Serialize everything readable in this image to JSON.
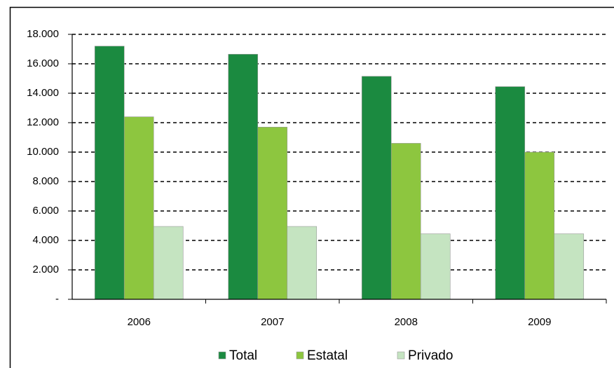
{
  "chart_data": {
    "type": "bar",
    "categories": [
      "2006",
      "2007",
      "2008",
      "2009"
    ],
    "series": [
      {
        "name": "Total",
        "color": "#1b8a40",
        "values": [
          17200,
          16650,
          15150,
          14450
        ]
      },
      {
        "name": "Estatal",
        "color": "#8dc63f",
        "values": [
          12400,
          11700,
          10600,
          10000
        ]
      },
      {
        "name": "Privado",
        "color": "#c5e4c1",
        "values": [
          4950,
          4950,
          4450,
          4450
        ]
      }
    ],
    "ylim": [
      0,
      18000
    ],
    "yticks": [
      {
        "value": 0,
        "label": "-"
      },
      {
        "value": 2000,
        "label": "2.000"
      },
      {
        "value": 4000,
        "label": "4.000"
      },
      {
        "value": 6000,
        "label": "6.000"
      },
      {
        "value": 8000,
        "label": "8.000"
      },
      {
        "value": 10000,
        "label": "10.000"
      },
      {
        "value": 12000,
        "label": "12.000"
      },
      {
        "value": 14000,
        "label": "14.000"
      },
      {
        "value": 16000,
        "label": "16.000"
      },
      {
        "value": 18000,
        "label": "18.000"
      }
    ],
    "grid": true,
    "legend": "bottom"
  }
}
